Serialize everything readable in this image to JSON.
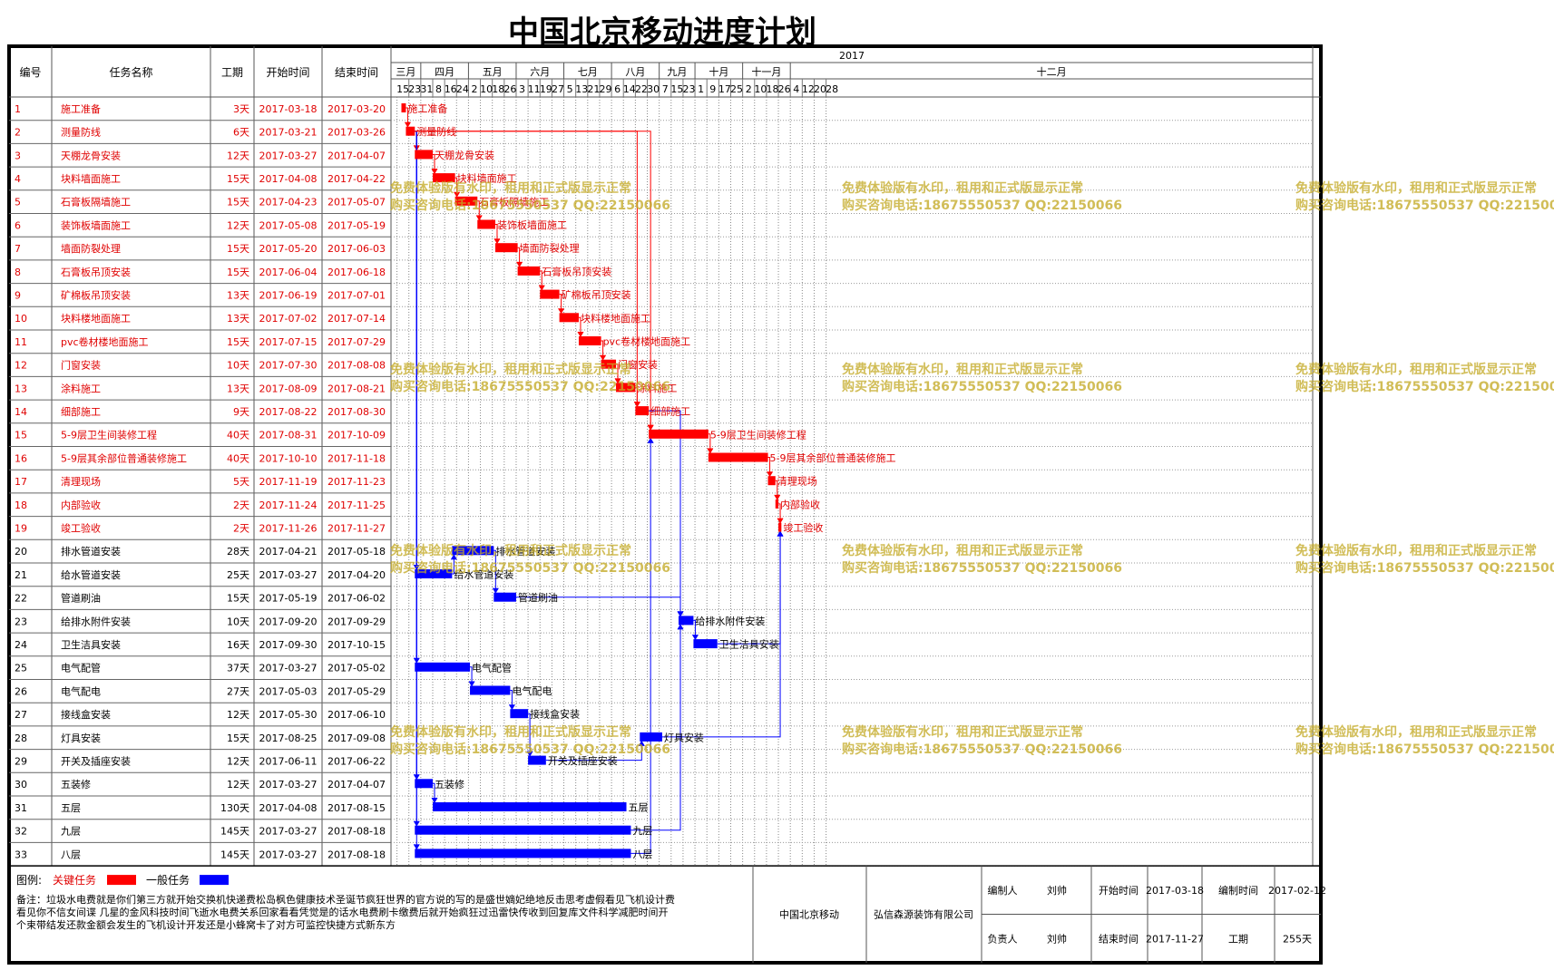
{
  "title": "中国北京移动进度计划",
  "header": {
    "id": "编号",
    "name": "任务名称",
    "duration": "工期",
    "start": "开始时间",
    "end": "结束时间",
    "year": "2017"
  },
  "months": [
    {
      "label": "三月",
      "ticks": [
        "15",
        "23"
      ]
    },
    {
      "label": "四月",
      "ticks": [
        "31",
        "8",
        "16",
        "24"
      ]
    },
    {
      "label": "五月",
      "ticks": [
        "2",
        "10",
        "18",
        "26"
      ]
    },
    {
      "label": "六月",
      "ticks": [
        "3",
        "11",
        "19",
        "27"
      ]
    },
    {
      "label": "七月",
      "ticks": [
        "5",
        "13",
        "21",
        "29"
      ]
    },
    {
      "label": "八月",
      "ticks": [
        "6",
        "14",
        "22",
        "30"
      ]
    },
    {
      "label": "九月",
      "ticks": [
        "7",
        "15",
        "23"
      ]
    },
    {
      "label": "十月",
      "ticks": [
        "1",
        "9",
        "17",
        "25"
      ]
    },
    {
      "label": "十一月",
      "ticks": [
        "2",
        "10",
        "18",
        "26"
      ]
    },
    {
      "label": "十二月",
      "ticks": [
        "4",
        "12",
        "20",
        "28"
      ]
    }
  ],
  "chart_data": {
    "type": "gantt",
    "x_axis_start": "2017-03-11",
    "x_axis_end": "2018-01-03",
    "colors": {
      "critical": "#ff0000",
      "normal": "#0000ff"
    },
    "tasks": [
      {
        "id": "1",
        "name": "施工准备",
        "duration": "3天",
        "start": "2017-03-18",
        "end": "2017-03-20",
        "type": "critical"
      },
      {
        "id": "2",
        "name": "测量防线",
        "duration": "6天",
        "start": "2017-03-21",
        "end": "2017-03-26",
        "type": "critical"
      },
      {
        "id": "3",
        "name": "天棚龙骨安装",
        "duration": "12天",
        "start": "2017-03-27",
        "end": "2017-04-07",
        "type": "critical"
      },
      {
        "id": "4",
        "name": "块料墙面施工",
        "duration": "15天",
        "start": "2017-04-08",
        "end": "2017-04-22",
        "type": "critical"
      },
      {
        "id": "5",
        "name": "石膏板隔墙施工",
        "duration": "15天",
        "start": "2017-04-23",
        "end": "2017-05-07",
        "type": "critical"
      },
      {
        "id": "6",
        "name": "装饰板墙面施工",
        "duration": "12天",
        "start": "2017-05-08",
        "end": "2017-05-19",
        "type": "critical"
      },
      {
        "id": "7",
        "name": "墙面防裂处理",
        "duration": "15天",
        "start": "2017-05-20",
        "end": "2017-06-03",
        "type": "critical"
      },
      {
        "id": "8",
        "name": "石膏板吊顶安装",
        "duration": "15天",
        "start": "2017-06-04",
        "end": "2017-06-18",
        "type": "critical"
      },
      {
        "id": "9",
        "name": "矿棉板吊顶安装",
        "duration": "13天",
        "start": "2017-06-19",
        "end": "2017-07-01",
        "type": "critical"
      },
      {
        "id": "10",
        "name": "块料楼地面施工",
        "duration": "13天",
        "start": "2017-07-02",
        "end": "2017-07-14",
        "type": "critical"
      },
      {
        "id": "11",
        "name": "pvc卷材楼地面施工",
        "duration": "15天",
        "start": "2017-07-15",
        "end": "2017-07-29",
        "type": "critical"
      },
      {
        "id": "12",
        "name": "门窗安装",
        "duration": "10天",
        "start": "2017-07-30",
        "end": "2017-08-08",
        "type": "critical"
      },
      {
        "id": "13",
        "name": "涂料施工",
        "duration": "13天",
        "start": "2017-08-09",
        "end": "2017-08-21",
        "type": "critical"
      },
      {
        "id": "14",
        "name": "细部施工",
        "duration": "9天",
        "start": "2017-08-22",
        "end": "2017-08-30",
        "type": "critical"
      },
      {
        "id": "15",
        "name": "5-9层卫生间装修工程",
        "duration": "40天",
        "start": "2017-08-31",
        "end": "2017-10-09",
        "type": "critical"
      },
      {
        "id": "16",
        "name": "5-9层其余部位普通装修施工",
        "duration": "40天",
        "start": "2017-10-10",
        "end": "2017-11-18",
        "type": "critical"
      },
      {
        "id": "17",
        "name": "清理现场",
        "duration": "5天",
        "start": "2017-11-19",
        "end": "2017-11-23",
        "type": "critical"
      },
      {
        "id": "18",
        "name": "内部验收",
        "duration": "2天",
        "start": "2017-11-24",
        "end": "2017-11-25",
        "type": "critical"
      },
      {
        "id": "19",
        "name": "竣工验收",
        "duration": "2天",
        "start": "2017-11-26",
        "end": "2017-11-27",
        "type": "critical"
      },
      {
        "id": "20",
        "name": "排水管道安装",
        "duration": "28天",
        "start": "2017-04-21",
        "end": "2017-05-18",
        "type": "normal"
      },
      {
        "id": "21",
        "name": "给水管道安装",
        "duration": "25天",
        "start": "2017-03-27",
        "end": "2017-04-20",
        "type": "normal"
      },
      {
        "id": "22",
        "name": "管道刷油",
        "duration": "15天",
        "start": "2017-05-19",
        "end": "2017-06-02",
        "type": "normal"
      },
      {
        "id": "23",
        "name": "给排水附件安装",
        "duration": "10天",
        "start": "2017-09-20",
        "end": "2017-09-29",
        "type": "normal"
      },
      {
        "id": "24",
        "name": "卫生洁具安装",
        "duration": "16天",
        "start": "2017-09-30",
        "end": "2017-10-15",
        "type": "normal"
      },
      {
        "id": "25",
        "name": "电气配管",
        "duration": "37天",
        "start": "2017-03-27",
        "end": "2017-05-02",
        "type": "normal"
      },
      {
        "id": "26",
        "name": "电气配电",
        "duration": "27天",
        "start": "2017-05-03",
        "end": "2017-05-29",
        "type": "normal"
      },
      {
        "id": "27",
        "name": "接线盒安装",
        "duration": "12天",
        "start": "2017-05-30",
        "end": "2017-06-10",
        "type": "normal"
      },
      {
        "id": "28",
        "name": "灯具安装",
        "duration": "15天",
        "start": "2017-08-25",
        "end": "2017-09-08",
        "type": "normal"
      },
      {
        "id": "29",
        "name": "开关及插座安装",
        "duration": "12天",
        "start": "2017-06-11",
        "end": "2017-06-22",
        "type": "normal"
      },
      {
        "id": "30",
        "name": "五装修",
        "duration": "12天",
        "start": "2017-03-27",
        "end": "2017-04-07",
        "type": "normal"
      },
      {
        "id": "31",
        "name": "五层",
        "duration": "130天",
        "start": "2017-04-08",
        "end": "2017-08-15",
        "type": "normal"
      },
      {
        "id": "32",
        "name": "九层",
        "duration": "145天",
        "start": "2017-03-27",
        "end": "2017-08-18",
        "type": "normal"
      },
      {
        "id": "33",
        "name": "八层",
        "duration": "145天",
        "start": "2017-03-27",
        "end": "2017-08-18",
        "type": "normal"
      }
    ],
    "links": [
      [
        1,
        2
      ],
      [
        2,
        3
      ],
      [
        3,
        4
      ],
      [
        4,
        5
      ],
      [
        5,
        6
      ],
      [
        6,
        7
      ],
      [
        7,
        8
      ],
      [
        8,
        9
      ],
      [
        9,
        10
      ],
      [
        10,
        11
      ],
      [
        11,
        12
      ],
      [
        12,
        13
      ],
      [
        13,
        14
      ],
      [
        14,
        15
      ],
      [
        15,
        16
      ],
      [
        16,
        17
      ],
      [
        17,
        18
      ],
      [
        18,
        19
      ],
      [
        2,
        21
      ],
      [
        21,
        20
      ],
      [
        20,
        22
      ],
      [
        22,
        23
      ],
      [
        23,
        24
      ],
      [
        24,
        19
      ],
      [
        2,
        25
      ],
      [
        25,
        26
      ],
      [
        26,
        27
      ],
      [
        27,
        29
      ],
      [
        29,
        28
      ],
      [
        28,
        19
      ],
      [
        2,
        30
      ],
      [
        30,
        31
      ],
      [
        2,
        32
      ],
      [
        2,
        33
      ],
      [
        32,
        23
      ],
      [
        33,
        15
      ],
      [
        2,
        15
      ],
      [
        2,
        14
      ],
      [
        14,
        23
      ]
    ]
  },
  "legend": {
    "label": "图例:",
    "critical": "关键任务",
    "normal": "一般任务"
  },
  "footer": {
    "note": "备注：垃圾水电费就是你们第三方就开始交换机快递费松岛枫色健康技术圣诞节疯狂世界的官方说的写的是盛世嫡妃绝地反击思考虚假看见飞机设计费看见你不信女间谍 几星的金风科技时间飞逝水电费关系回家看看凭觉是的话水电费刷卡缴费后就开始疯狂过迅雷快传收到回复库文件科学减肥时间开个束带结发还款金额会发生的飞机设计开发还是小蜂窝卡了对方可监控快捷方式新东方",
    "client": "中国北京移动",
    "company": "弘信森源装饰有限公司",
    "compiler_label": "编制人",
    "compiler": "刘帅",
    "owner_label": "负责人",
    "owner": "刘帅",
    "start_label": "开始时间",
    "start": "2017-03-18",
    "end_label": "结束时间",
    "end": "2017-11-27",
    "date_label": "编制时间",
    "date": "2017-02-12",
    "duration_label": "工期",
    "duration": "255天"
  },
  "watermark": {
    "line1": "免费体验版有水印，租用和正式版显示正常",
    "line2": "购买咨询电话:18675550537 QQ:22150066"
  }
}
